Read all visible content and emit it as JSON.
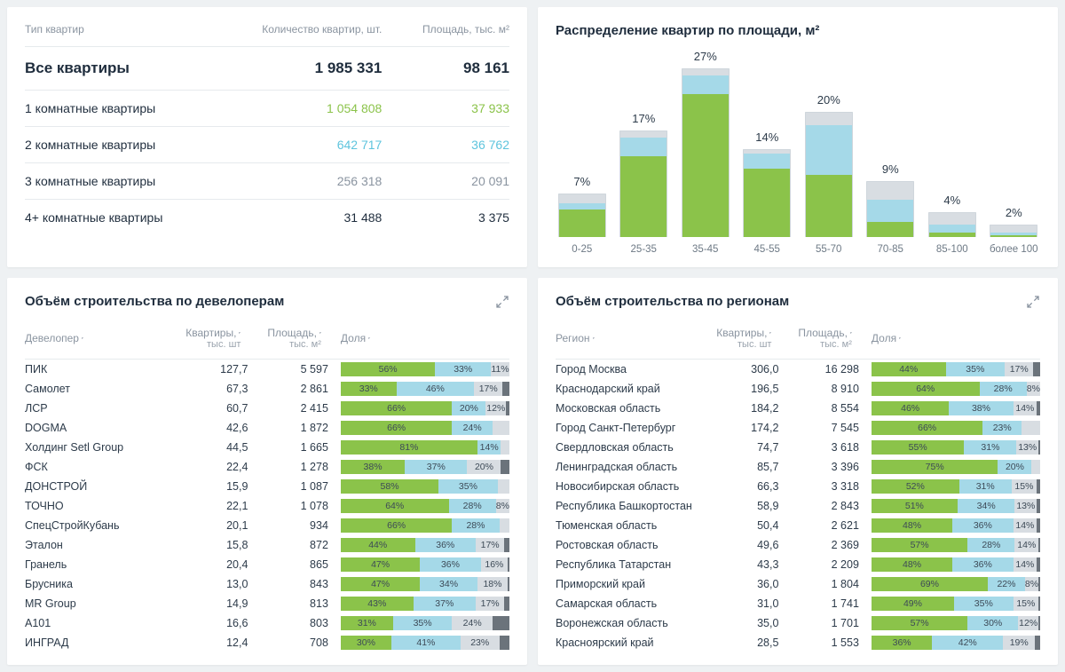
{
  "colors": {
    "green": "#8bc34a",
    "blue": "#a5d9e8",
    "grey": "#d8dde2",
    "dark_grey": "#6b737b",
    "text_muted": "#8a94a0",
    "row1": "#8bc34a",
    "row2": "#5ec4dd"
  },
  "apt_types": {
    "headers": [
      "Тип квартир",
      "Количество квартир, шт.",
      "Площадь, тыс. м²"
    ],
    "total": {
      "label": "Все квартиры",
      "count": "1 985 331",
      "area": "98 161",
      "color": "#1f2d3d"
    },
    "rows": [
      {
        "label": "1 комнатные квартиры",
        "count": "1 054 808",
        "area": "37 933",
        "color": "#8bc34a"
      },
      {
        "label": "2 комнатные квартиры",
        "count": "642 717",
        "area": "36 762",
        "color": "#5ec4dd"
      },
      {
        "label": "3 комнатные квартиры",
        "count": "256 318",
        "area": "20 091",
        "color": "#8a94a0"
      },
      {
        "label": "4+ комнатные квартиры",
        "count": "31 488",
        "area": "3 375",
        "color": "#1f2d3d"
      }
    ]
  },
  "distribution": {
    "title": "Распределение квартир по площади, м²",
    "max_pct": 27,
    "bars": [
      {
        "cat": "0-25",
        "pct": "7%",
        "total": 7,
        "green": 4.5,
        "blue": 1.0,
        "grey": 1.5
      },
      {
        "cat": "25-35",
        "pct": "17%",
        "total": 17,
        "green": 13,
        "blue": 3,
        "grey": 1
      },
      {
        "cat": "35-45",
        "pct": "27%",
        "total": 27,
        "green": 23,
        "blue": 3,
        "grey": 1
      },
      {
        "cat": "45-55",
        "pct": "14%",
        "total": 14,
        "green": 11,
        "blue": 2.5,
        "grey": 0.5
      },
      {
        "cat": "55-70",
        "pct": "20%",
        "total": 20,
        "green": 10,
        "blue": 8,
        "grey": 2
      },
      {
        "cat": "70-85",
        "pct": "9%",
        "total": 9,
        "green": 2.5,
        "blue": 3.5,
        "grey": 3
      },
      {
        "cat": "85-100",
        "pct": "4%",
        "total": 4,
        "green": 0.7,
        "blue": 1.3,
        "grey": 2
      },
      {
        "cat": "более 100",
        "pct": "2%",
        "total": 2,
        "green": 0.3,
        "blue": 0.5,
        "grey": 1.2
      }
    ]
  },
  "developers": {
    "title": "Объём строительства по девелоперам",
    "headers": {
      "name": "Девелопер",
      "apt": "Квартиры,",
      "apt_sub": "тыс. шт",
      "area": "Площадь,",
      "area_sub": "тыс. м²",
      "share": "Доля"
    },
    "rows": [
      {
        "name": "ПИК",
        "apt": "127,7",
        "area": "5 597",
        "segs": [
          [
            "56%",
            56
          ],
          [
            "33%",
            33
          ],
          [
            "11%",
            11
          ]
        ],
        "tail": 0
      },
      {
        "name": "Самолет",
        "apt": "67,3",
        "area": "2 861",
        "segs": [
          [
            "33%",
            33
          ],
          [
            "46%",
            46
          ],
          [
            "17%",
            17
          ]
        ],
        "tail": 4
      },
      {
        "name": "ЛСР",
        "apt": "60,7",
        "area": "2 415",
        "segs": [
          [
            "66%",
            66
          ],
          [
            "20%",
            20
          ],
          [
            "12%",
            12
          ]
        ],
        "tail": 2
      },
      {
        "name": "DOGMA",
        "apt": "42,6",
        "area": "1 872",
        "segs": [
          [
            "66%",
            66
          ],
          [
            "24%",
            24
          ],
          [
            "",
            10
          ]
        ],
        "tail": 0
      },
      {
        "name": "Холдинг Setl Group",
        "apt": "44,5",
        "area": "1 665",
        "segs": [
          [
            "81%",
            81
          ],
          [
            "14%",
            14
          ],
          [
            "",
            5
          ]
        ],
        "tail": 0
      },
      {
        "name": "ФСК",
        "apt": "22,4",
        "area": "1 278",
        "segs": [
          [
            "38%",
            38
          ],
          [
            "37%",
            37
          ],
          [
            "20%",
            20
          ]
        ],
        "tail": 5
      },
      {
        "name": "ДОНСТРОЙ",
        "apt": "15,9",
        "area": "1 087",
        "segs": [
          [
            "58%",
            58
          ],
          [
            "35%",
            35
          ],
          [
            "",
            7
          ]
        ],
        "tail": 0
      },
      {
        "name": "ТОЧНО",
        "apt": "22,1",
        "area": "1 078",
        "segs": [
          [
            "64%",
            64
          ],
          [
            "28%",
            28
          ],
          [
            "8%",
            8
          ]
        ],
        "tail": 0
      },
      {
        "name": "СпецСтройКубань",
        "apt": "20,1",
        "area": "934",
        "segs": [
          [
            "66%",
            66
          ],
          [
            "28%",
            28
          ],
          [
            "",
            6
          ]
        ],
        "tail": 0
      },
      {
        "name": "Эталон",
        "apt": "15,8",
        "area": "872",
        "segs": [
          [
            "44%",
            44
          ],
          [
            "36%",
            36
          ],
          [
            "17%",
            17
          ]
        ],
        "tail": 3
      },
      {
        "name": "Гранель",
        "apt": "20,4",
        "area": "865",
        "segs": [
          [
            "47%",
            47
          ],
          [
            "36%",
            36
          ],
          [
            "16%",
            16
          ]
        ],
        "tail": 1
      },
      {
        "name": "Брусника",
        "apt": "13,0",
        "area": "843",
        "segs": [
          [
            "47%",
            47
          ],
          [
            "34%",
            34
          ],
          [
            "18%",
            18
          ]
        ],
        "tail": 1
      },
      {
        "name": "MR Group",
        "apt": "14,9",
        "area": "813",
        "segs": [
          [
            "43%",
            43
          ],
          [
            "37%",
            37
          ],
          [
            "17%",
            17
          ]
        ],
        "tail": 3
      },
      {
        "name": "А101",
        "apt": "16,6",
        "area": "803",
        "segs": [
          [
            "31%",
            31
          ],
          [
            "35%",
            35
          ],
          [
            "24%",
            24
          ]
        ],
        "tail": 10
      },
      {
        "name": "ИНГРАД",
        "apt": "12,4",
        "area": "708",
        "segs": [
          [
            "30%",
            30
          ],
          [
            "41%",
            41
          ],
          [
            "23%",
            23
          ]
        ],
        "tail": 6
      }
    ]
  },
  "regions": {
    "title": "Объём строительства по регионам",
    "headers": {
      "name": "Регион",
      "apt": "Квартиры,",
      "apt_sub": "тыс. шт",
      "area": "Площадь,",
      "area_sub": "тыс. м²",
      "share": "Доля"
    },
    "rows": [
      {
        "name": "Город Москва",
        "apt": "306,0",
        "area": "16 298",
        "segs": [
          [
            "44%",
            44
          ],
          [
            "35%",
            35
          ],
          [
            "17%",
            17
          ]
        ],
        "tail": 4
      },
      {
        "name": "Краснодарский край",
        "apt": "196,5",
        "area": "8 910",
        "segs": [
          [
            "64%",
            64
          ],
          [
            "28%",
            28
          ],
          [
            "8%",
            8
          ]
        ],
        "tail": 0
      },
      {
        "name": "Московская область",
        "apt": "184,2",
        "area": "8 554",
        "segs": [
          [
            "46%",
            46
          ],
          [
            "38%",
            38
          ],
          [
            "14%",
            14
          ]
        ],
        "tail": 2
      },
      {
        "name": "Город Санкт-Петербург",
        "apt": "174,2",
        "area": "7 545",
        "segs": [
          [
            "66%",
            66
          ],
          [
            "23%",
            23
          ],
          [
            "",
            11
          ]
        ],
        "tail": 0
      },
      {
        "name": "Свердловская область",
        "apt": "74,7",
        "area": "3 618",
        "segs": [
          [
            "55%",
            55
          ],
          [
            "31%",
            31
          ],
          [
            "13%",
            13
          ]
        ],
        "tail": 1
      },
      {
        "name": "Ленинградская область",
        "apt": "85,7",
        "area": "3 396",
        "segs": [
          [
            "75%",
            75
          ],
          [
            "20%",
            20
          ],
          [
            "",
            5
          ]
        ],
        "tail": 0
      },
      {
        "name": "Новосибирская область",
        "apt": "66,3",
        "area": "3 318",
        "segs": [
          [
            "52%",
            52
          ],
          [
            "31%",
            31
          ],
          [
            "15%",
            15
          ]
        ],
        "tail": 2
      },
      {
        "name": "Республика Башкортостан",
        "apt": "58,9",
        "area": "2 843",
        "segs": [
          [
            "51%",
            51
          ],
          [
            "34%",
            34
          ],
          [
            "13%",
            13
          ]
        ],
        "tail": 2
      },
      {
        "name": "Тюменская область",
        "apt": "50,4",
        "area": "2 621",
        "segs": [
          [
            "48%",
            48
          ],
          [
            "36%",
            36
          ],
          [
            "14%",
            14
          ]
        ],
        "tail": 2
      },
      {
        "name": "Ростовская область",
        "apt": "49,6",
        "area": "2 369",
        "segs": [
          [
            "57%",
            57
          ],
          [
            "28%",
            28
          ],
          [
            "14%",
            14
          ]
        ],
        "tail": 1
      },
      {
        "name": "Республика Татарстан",
        "apt": "43,3",
        "area": "2 209",
        "segs": [
          [
            "48%",
            48
          ],
          [
            "36%",
            36
          ],
          [
            "14%",
            14
          ]
        ],
        "tail": 2
      },
      {
        "name": "Приморский край",
        "apt": "36,0",
        "area": "1 804",
        "segs": [
          [
            "69%",
            69
          ],
          [
            "22%",
            22
          ],
          [
            "8%",
            8
          ]
        ],
        "tail": 1
      },
      {
        "name": "Самарская область",
        "apt": "31,0",
        "area": "1 741",
        "segs": [
          [
            "49%",
            49
          ],
          [
            "35%",
            35
          ],
          [
            "15%",
            15
          ]
        ],
        "tail": 1
      },
      {
        "name": "Воронежская область",
        "apt": "35,0",
        "area": "1 701",
        "segs": [
          [
            "57%",
            57
          ],
          [
            "30%",
            30
          ],
          [
            "12%",
            12
          ]
        ],
        "tail": 1
      },
      {
        "name": "Красноярский край",
        "apt": "28,5",
        "area": "1 553",
        "segs": [
          [
            "36%",
            36
          ],
          [
            "42%",
            42
          ],
          [
            "19%",
            19
          ]
        ],
        "tail": 3
      }
    ]
  }
}
